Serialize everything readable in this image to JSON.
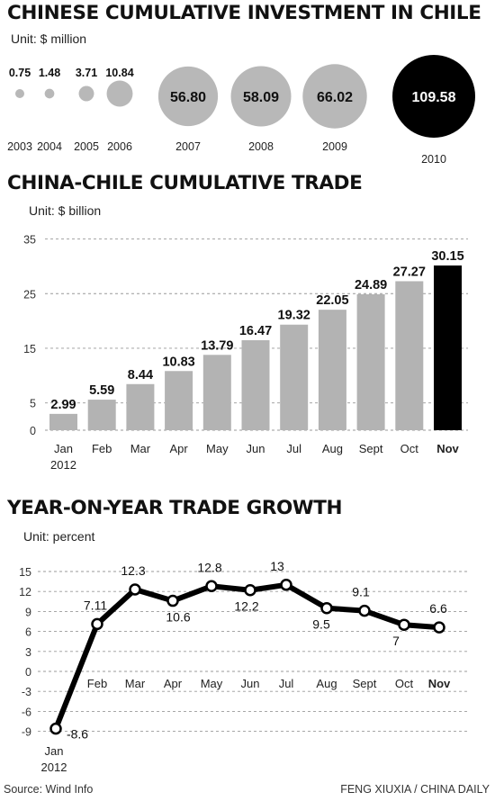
{
  "chart_data": [
    {
      "type": "bubble",
      "title": "CHINESE CUMULATIVE INVESTMENT IN CHILE",
      "unit": "Unit: $ million",
      "categories": [
        "2003",
        "2004",
        "2005",
        "2006",
        "2007",
        "2008",
        "2009",
        "2010"
      ],
      "labels": [
        "0.75",
        "1.48",
        "3.71",
        "10.84",
        "56.80",
        "58.09",
        "66.02",
        "109.58"
      ],
      "values": [
        0.75,
        1.48,
        3.71,
        10.84,
        56.8,
        58.09,
        66.02,
        109.58
      ],
      "highlight_index": 7
    },
    {
      "type": "bar",
      "title": "CHINA-CHILE CUMULATIVE TRADE",
      "unit": "Unit: $ billion",
      "categories": [
        "Jan",
        "Feb",
        "Mar",
        "Apr",
        "May",
        "Jun",
        "Jul",
        "Aug",
        "Sept",
        "Oct",
        "Nov"
      ],
      "first_category_sub": "2012",
      "labels": [
        "2.99",
        "5.59",
        "8.44",
        "10.83",
        "13.79",
        "16.47",
        "19.32",
        "22.05",
        "24.89",
        "27.27",
        "30.15"
      ],
      "values": [
        2.99,
        5.59,
        8.44,
        10.83,
        13.79,
        16.47,
        19.32,
        22.05,
        24.89,
        27.27,
        30.15
      ],
      "yticks": [
        "0",
        "5",
        "15",
        "25",
        "35"
      ],
      "ylim": [
        0,
        35
      ],
      "highlight_index": 10,
      "grid": true
    },
    {
      "type": "line",
      "title": "YEAR-ON-YEAR TRADE GROWTH",
      "unit": "Unit: percent",
      "categories": [
        "Jan",
        "Feb",
        "Mar",
        "Apr",
        "May",
        "Jun",
        "Jul",
        "Aug",
        "Sept",
        "Oct",
        "Nov"
      ],
      "first_category_sub": "2012",
      "labels": [
        "-8.6",
        "7.11",
        "12.3",
        "10.6",
        "12.8",
        "12.2",
        "13",
        "9.5",
        "9.1",
        "7",
        "6.6"
      ],
      "values": [
        -8.6,
        7.11,
        12.3,
        10.6,
        12.8,
        12.2,
        13,
        9.5,
        9.1,
        7,
        6.6
      ],
      "yticks": [
        "15",
        "12",
        "9",
        "6",
        "3",
        "0",
        "-3",
        "-6",
        "-9"
      ],
      "ylim": [
        -9,
        15
      ],
      "grid": true
    }
  ],
  "colors": {
    "bar": "#b3b3b3",
    "highlight": "#000000",
    "bubble": "#b8b8b8",
    "line": "#000000",
    "grid": "#999999"
  },
  "footer": {
    "source": "Source: Wind Info",
    "credit": "FENG XIUXIA / CHINA DAILY"
  }
}
